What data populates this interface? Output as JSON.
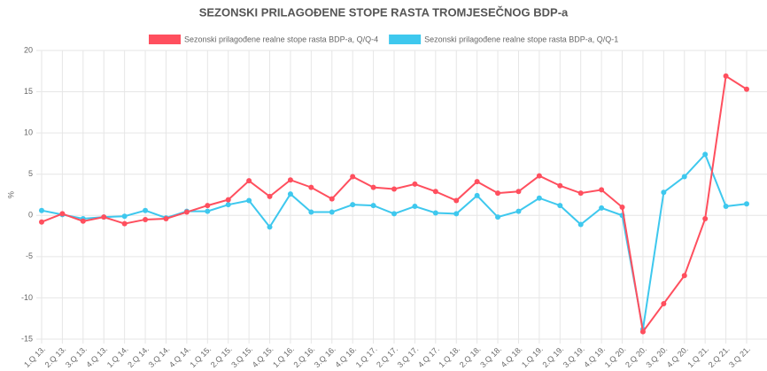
{
  "chart_data": {
    "type": "line",
    "title": "SEZONSKI PRILAGOĐENE STOPE RASTA TROMJESEČNOG BDP-a",
    "y_label": "%",
    "categories": [
      "1.Q 13.",
      "2.Q 13.",
      "3.Q 13.",
      "4.Q 13.",
      "1.Q 14.",
      "2.Q 14.",
      "3.Q 14.",
      "4.Q 14.",
      "1.Q 15.",
      "2.Q 15.",
      "3.Q 15.",
      "4.Q 15.",
      "1.Q 16.",
      "2.Q 16.",
      "3.Q 16.",
      "4.Q 16.",
      "1.Q 17.",
      "2.Q 17.",
      "3.Q 17.",
      "4.Q 17.",
      "1.Q 18.",
      "2.Q 18.",
      "3.Q 18.",
      "4.Q 18.",
      "1.Q 19.",
      "2.Q 19.",
      "3.Q 19.",
      "4.Q 19.",
      "1.Q 20.",
      "2.Q 20.",
      "3.Q 20.",
      "4.Q 20.",
      "1.Q 21.",
      "2.Q 21.",
      "3.Q 21."
    ],
    "series": [
      {
        "name": "Sezonski prilagođene realne stope rasta BDP-a, Q/Q-4",
        "color": "#ff4f5e",
        "values": [
          -0.8,
          0.2,
          -0.7,
          -0.2,
          -1.0,
          -0.5,
          -0.4,
          0.4,
          1.2,
          1.9,
          4.2,
          2.3,
          4.3,
          3.4,
          2.0,
          4.7,
          3.4,
          3.2,
          3.8,
          2.9,
          1.8,
          4.1,
          2.7,
          2.9,
          4.8,
          3.6,
          2.7,
          3.1,
          1.0,
          -14.1,
          -10.7,
          -7.3,
          -0.4,
          16.9,
          15.3
        ]
      },
      {
        "name": "Sezonski prilagođene realne stope rasta BDP-a, Q/Q-1",
        "color": "#3ec8ee",
        "values": [
          0.6,
          0.1,
          -0.4,
          -0.2,
          -0.1,
          0.6,
          -0.3,
          0.5,
          0.5,
          1.3,
          1.8,
          -1.4,
          2.6,
          0.4,
          0.4,
          1.3,
          1.2,
          0.2,
          1.1,
          0.3,
          0.2,
          2.4,
          -0.2,
          0.5,
          2.1,
          1.2,
          -1.1,
          0.9,
          0.0,
          -13.8,
          2.8,
          4.7,
          7.4,
          1.1,
          1.4
        ]
      }
    ],
    "ylim": [
      -15,
      20
    ],
    "yticks": [
      -15,
      -10,
      -5,
      0,
      5,
      10,
      15,
      20
    ],
    "grid": true
  }
}
